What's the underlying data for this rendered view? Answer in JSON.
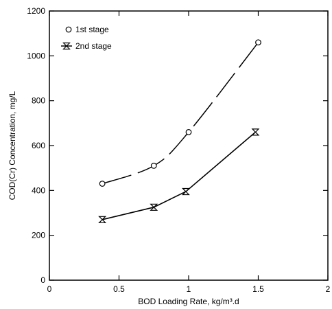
{
  "chart_data": {
    "type": "scatter",
    "xlabel": "BOD Loading Rate, kg/m³.d",
    "ylabel": "COD(Cr) Concentration, mg/L",
    "xlim": [
      0,
      2
    ],
    "ylim": [
      0,
      1200
    ],
    "x_ticks": [
      "0",
      "0.5",
      "1",
      "1.5",
      "2"
    ],
    "y_ticks": [
      "0",
      "200",
      "400",
      "600",
      "800",
      "1000",
      "1200"
    ],
    "grid": false,
    "legend_position": "top-left",
    "series": [
      {
        "name": "1st stage",
        "marker": "circle",
        "line": "dashed",
        "x": [
          0.38,
          0.75,
          1.0,
          1.5
        ],
        "y": [
          430,
          510,
          660,
          1060
        ]
      },
      {
        "name": "2nd stage",
        "marker": "hourglass",
        "line": "solid",
        "x": [
          0.38,
          0.75,
          0.98,
          1.48
        ],
        "y": [
          270,
          325,
          395,
          660
        ]
      }
    ]
  }
}
